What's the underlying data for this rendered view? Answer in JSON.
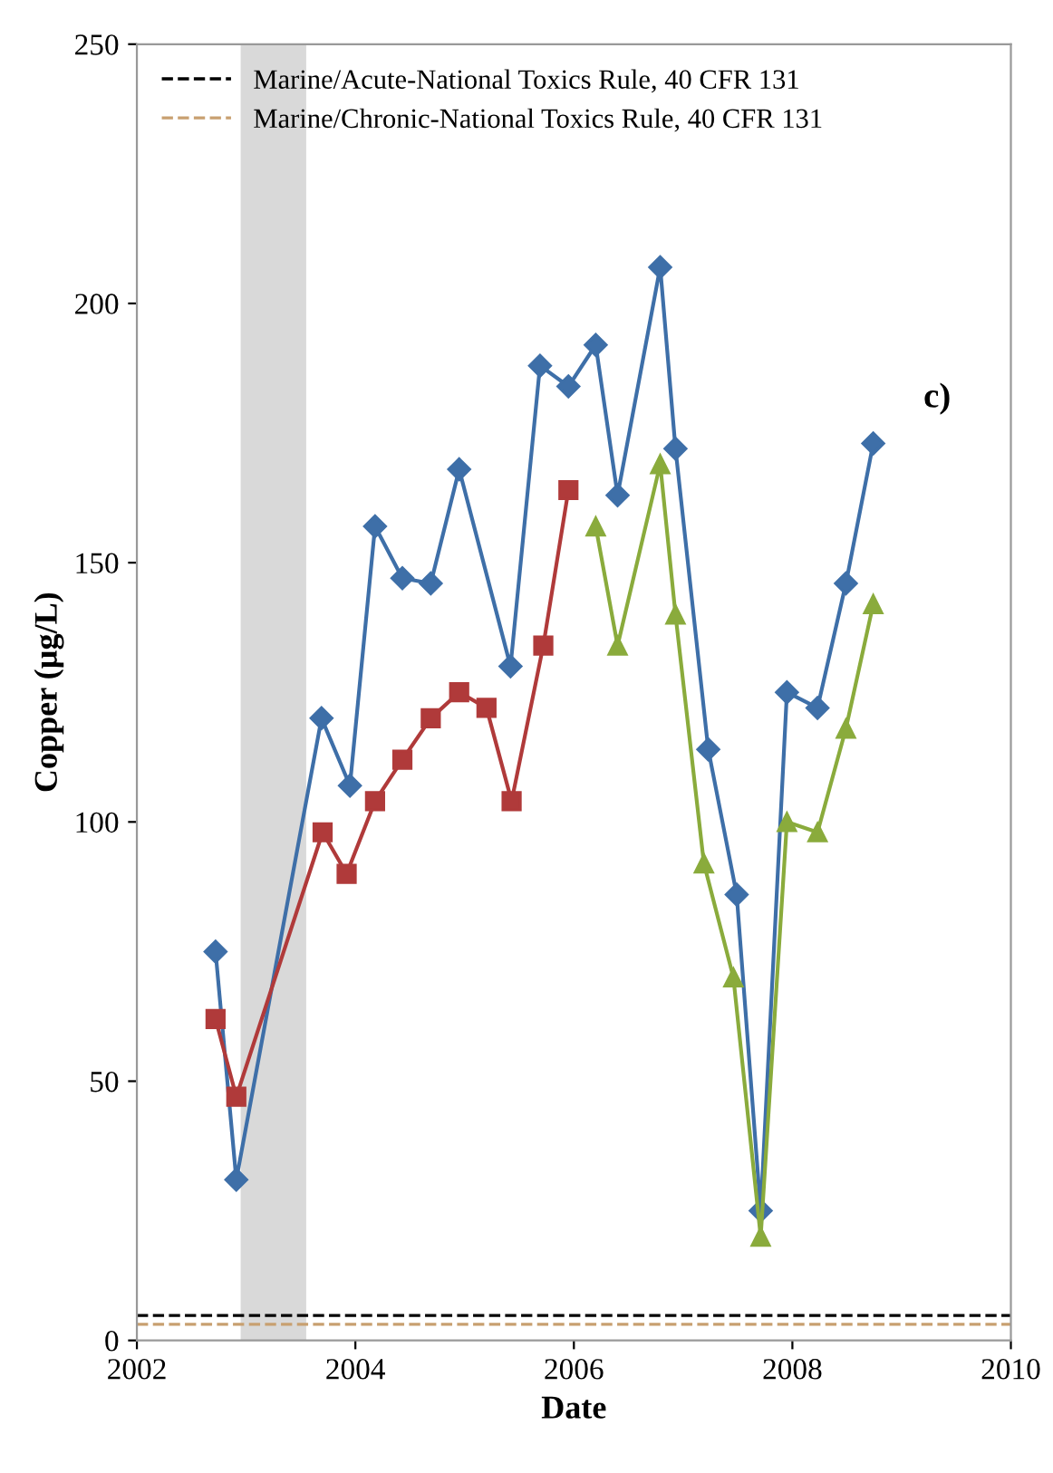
{
  "chart_data": {
    "type": "line",
    "xlabel": "Date",
    "ylabel": "Copper (µg/L)",
    "xlim": [
      2002,
      2010
    ],
    "xticks": [
      2002,
      2004,
      2006,
      2008,
      2010
    ],
    "ylim": [
      0,
      250
    ],
    "yticks": [
      0,
      50,
      100,
      150,
      200,
      250
    ],
    "grid": false,
    "legend": "top left",
    "annotations": [
      "c)"
    ],
    "series": [
      {
        "color": "#3e6fa8",
        "marker": "diamond",
        "x": [
          2002.72,
          2002.91,
          2003.69,
          2003.95,
          2004.18,
          2004.43,
          2004.69,
          2004.95,
          2005.42,
          2005.69,
          2005.95,
          2006.2,
          2006.4,
          2006.79,
          2006.93,
          2007.23,
          2007.49,
          2007.71,
          2007.95,
          2008.23,
          2008.49,
          2008.74
        ],
        "values": [
          75,
          31,
          120,
          107,
          157,
          147,
          146,
          168,
          130,
          188,
          184,
          192,
          163,
          207,
          172,
          114,
          86,
          25,
          125,
          122,
          146,
          173
        ]
      },
      {
        "color": "#b03a3a",
        "marker": "square",
        "x": [
          2002.72,
          2002.91,
          2003.7,
          2003.92,
          2004.18,
          2004.43,
          2004.69,
          2004.95,
          2005.2,
          2005.43,
          2005.72,
          2005.95
        ],
        "values": [
          62,
          47,
          98,
          90,
          104,
          112,
          120,
          125,
          122,
          104,
          134,
          164
        ]
      },
      {
        "color": "#8aab3c",
        "marker": "triangle",
        "x": [
          2006.2,
          2006.4,
          2006.79,
          2006.93,
          2007.19,
          2007.46,
          2007.71,
          2007.95,
          2008.23,
          2008.49,
          2008.74
        ],
        "values": [
          157,
          134,
          169,
          140,
          92,
          70,
          20,
          100,
          98,
          118,
          142
        ]
      }
    ],
    "ref_lines": [
      {
        "axis": "y",
        "value": 4.8,
        "label": "Marine/Acute-National Toxics Rule, 40 CFR 131",
        "color": "#000000",
        "line_style": "dashed"
      },
      {
        "axis": "y",
        "value": 3.1,
        "label": "Marine/Chronic-National Toxics Rule, 40 CFR 131",
        "color": "#c8a070",
        "line_style": "dashed"
      }
    ],
    "bands": [
      {
        "axis": "x",
        "from": 2002.95,
        "to": 2003.55,
        "color": "#d9d9d9"
      }
    ]
  }
}
